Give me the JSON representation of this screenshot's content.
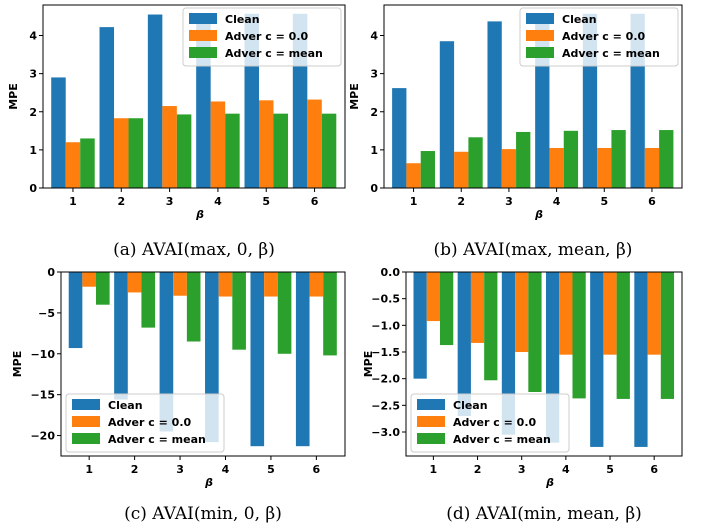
{
  "colors": {
    "clean": "#1f77b4",
    "adver0": "#ff7f0e",
    "adverMean": "#2ca02c"
  },
  "chart_data": [
    {
      "type": "bar",
      "caption": "(a) AVAI(max, 0, β)",
      "xlabel": "β",
      "ylabel": "MPE",
      "categories": [
        "1",
        "2",
        "3",
        "4",
        "5",
        "6"
      ],
      "ylim": [
        0,
        4.8
      ],
      "yticks": [
        0,
        1,
        2,
        3,
        4
      ],
      "ytick_labels": [
        "0",
        "1",
        "2",
        "3",
        "4"
      ],
      "legend": "top-right",
      "series": [
        {
          "name": "Clean",
          "values": [
            2.9,
            4.22,
            4.55,
            4.57,
            4.57,
            4.57
          ]
        },
        {
          "name": "Adver c = 0.0",
          "values": [
            1.2,
            1.83,
            2.15,
            2.27,
            2.3,
            2.32
          ]
        },
        {
          "name": "Adver c = mean",
          "values": [
            1.3,
            1.83,
            1.93,
            1.95,
            1.95,
            1.95
          ]
        }
      ]
    },
    {
      "type": "bar",
      "caption": "(b) AVAI(max, mean, β)",
      "xlabel": "β",
      "ylabel": "MPE",
      "categories": [
        "1",
        "2",
        "3",
        "4",
        "5",
        "6"
      ],
      "ylim": [
        0,
        4.8
      ],
      "yticks": [
        0,
        1,
        2,
        3,
        4
      ],
      "ytick_labels": [
        "0",
        "1",
        "2",
        "3",
        "4"
      ],
      "legend": "top-right",
      "series": [
        {
          "name": "Clean",
          "values": [
            2.62,
            3.85,
            4.37,
            4.55,
            4.57,
            4.57
          ]
        },
        {
          "name": "Adver c = 0.0",
          "values": [
            0.65,
            0.95,
            1.02,
            1.05,
            1.05,
            1.05
          ]
        },
        {
          "name": "Adver c = mean",
          "values": [
            0.97,
            1.33,
            1.47,
            1.5,
            1.52,
            1.52
          ]
        }
      ]
    },
    {
      "type": "bar",
      "caption": "(c) AVAI(min, 0, β)",
      "xlabel": "β",
      "ylabel": "MPE",
      "categories": [
        "1",
        "2",
        "3",
        "4",
        "5",
        "6"
      ],
      "ylim": [
        -22.5,
        0
      ],
      "yticks": [
        0,
        -5,
        -10,
        -15,
        -20
      ],
      "ytick_labels": [
        "0",
        "−5",
        "−10",
        "−15",
        "−20"
      ],
      "legend": "bottom-left",
      "series": [
        {
          "name": "Clean",
          "values": [
            -9.3,
            -15.6,
            -19.5,
            -20.8,
            -21.3,
            -21.3
          ]
        },
        {
          "name": "Adver c = 0.0",
          "values": [
            -1.8,
            -2.5,
            -2.9,
            -3.0,
            -3.0,
            -3.0
          ]
        },
        {
          "name": "Adver c = mean",
          "values": [
            -4.0,
            -6.8,
            -8.5,
            -9.5,
            -10.0,
            -10.2
          ]
        }
      ]
    },
    {
      "type": "bar",
      "caption": "(d) AVAI(min, mean, β)",
      "xlabel": "β",
      "ylabel": "MPE",
      "categories": [
        "1",
        "2",
        "3",
        "4",
        "5",
        "6"
      ],
      "ylim": [
        -3.45,
        0
      ],
      "yticks": [
        0,
        -0.5,
        -1,
        -1.5,
        -2,
        -2.5,
        -3
      ],
      "ytick_labels": [
        "0.0",
        "−0.5",
        "−1.0",
        "−1.5",
        "−2.0",
        "−2.5",
        "−3.0"
      ],
      "legend": "bottom-left",
      "series": [
        {
          "name": "Clean",
          "values": [
            -2.0,
            -2.7,
            -3.05,
            -3.2,
            -3.28,
            -3.28
          ]
        },
        {
          "name": "Adver c = 0.0",
          "values": [
            -0.92,
            -1.33,
            -1.5,
            -1.55,
            -1.55,
            -1.55
          ]
        },
        {
          "name": "Adver c = mean",
          "values": [
            -1.37,
            -2.03,
            -2.25,
            -2.37,
            -2.38,
            -2.38
          ]
        }
      ]
    }
  ]
}
